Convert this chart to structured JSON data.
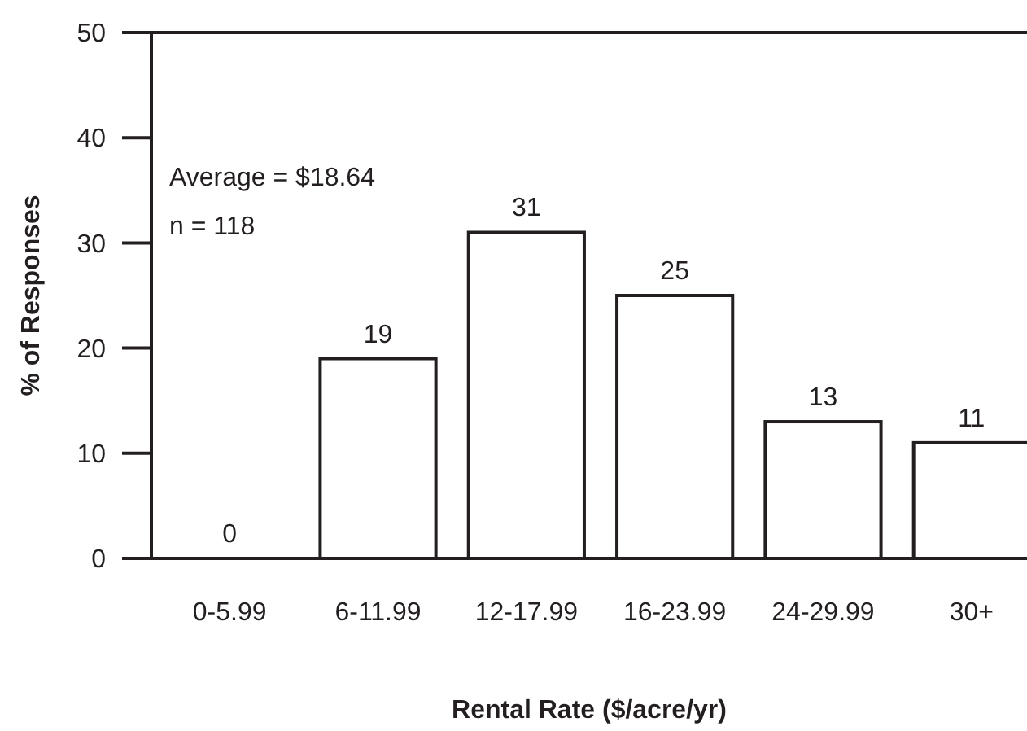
{
  "chart_data": {
    "type": "bar",
    "xlabel": "Rental Rate ($/acre/yr)",
    "ylabel": "% of Responses",
    "categories": [
      "0-5.99",
      "6-11.99",
      "12-17.99",
      "16-23.99",
      "24-29.99",
      "30+"
    ],
    "values": [
      0,
      19,
      31,
      25,
      13,
      11
    ],
    "color": "#ffffff",
    "ylim": [
      0,
      50
    ],
    "yticks": [
      0,
      10,
      20,
      30,
      40,
      50
    ],
    "grid": false,
    "data_labels": true,
    "annotations": [
      "Average = $18.64",
      "n = 118"
    ]
  }
}
